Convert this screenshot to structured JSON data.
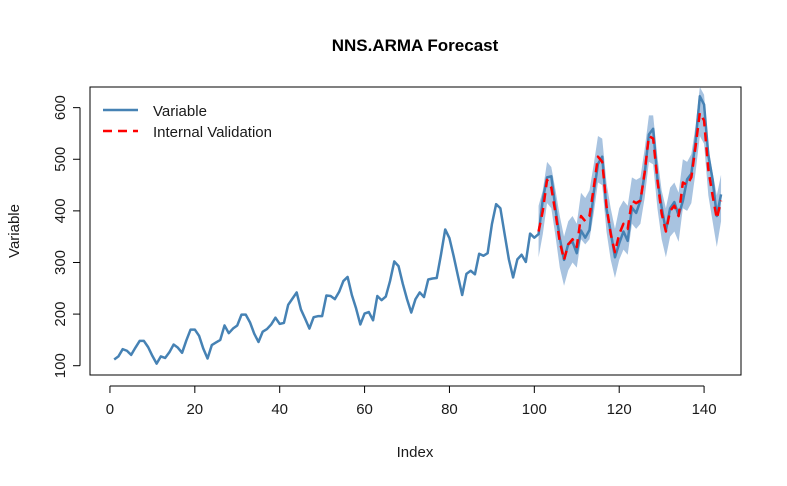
{
  "chart_data": {
    "type": "line",
    "title": "NNS.ARMA Forecast",
    "xlabel": "Index",
    "ylabel": "Variable",
    "xlim": [
      -4.7,
      148.7
    ],
    "ylim": [
      82,
      640
    ],
    "xticks": [
      0,
      20,
      40,
      60,
      80,
      100,
      120,
      140
    ],
    "yticks": [
      100,
      200,
      300,
      400,
      500,
      600
    ],
    "legend": {
      "position": "top-left",
      "entries": [
        "Variable",
        "Internal Validation"
      ]
    },
    "colors": {
      "variable": "#4682B4",
      "validation": "#FF0000",
      "interval": "#A8C3E0",
      "axis": "#000000"
    },
    "series": [
      {
        "name": "Variable",
        "x_start": 1,
        "values": [
          112,
          118,
          132,
          129,
          121,
          135,
          148,
          148,
          136,
          119,
          104,
          118,
          115,
          126,
          141,
          135,
          125,
          149,
          170,
          170,
          158,
          133,
          114,
          140,
          145,
          150,
          178,
          163,
          172,
          178,
          199,
          199,
          184,
          162,
          146,
          166,
          171,
          180,
          193,
          181,
          183,
          218,
          230,
          242,
          209,
          191,
          172,
          194,
          196,
          196,
          236,
          235,
          229,
          243,
          264,
          272,
          237,
          211,
          180,
          201,
          204,
          188,
          235,
          227,
          234,
          264,
          302,
          293,
          259,
          229,
          203,
          229,
          242,
          233,
          267,
          269,
          270,
          315,
          364,
          347,
          312,
          274,
          237,
          278,
          284,
          277,
          317,
          313,
          318,
          374,
          413,
          405,
          355,
          306,
          271,
          306,
          315,
          301,
          356,
          348,
          355,
          422,
          465,
          467,
          404,
          347,
          305,
          336,
          340,
          318,
          362,
          348,
          363,
          435,
          491,
          505,
          404,
          359,
          310,
          337,
          360,
          342,
          406,
          396,
          420,
          472,
          548,
          559,
          463,
          407,
          362,
          405,
          417,
          391,
          419,
          461,
          472,
          535,
          622,
          606,
          508,
          461,
          390,
          432
        ]
      },
      {
        "name": "Internal Validation",
        "x_start": 101,
        "values": [
          360,
          400,
          460,
          445,
          395,
          340,
          305,
          335,
          345,
          330,
          390,
          380,
          390,
          445,
          505,
          495,
          410,
          355,
          320,
          355,
          375,
          365,
          420,
          415,
          420,
          475,
          545,
          540,
          460,
          395,
          360,
          400,
          410,
          390,
          455,
          450,
          465,
          525,
          590,
          575,
          480,
          430,
          385,
          420
        ]
      }
    ],
    "interval_band": {
      "x_start": 101,
      "lower": [
        310,
        355,
        415,
        405,
        350,
        290,
        255,
        285,
        300,
        290,
        345,
        335,
        345,
        395,
        455,
        450,
        360,
        305,
        270,
        305,
        325,
        315,
        375,
        365,
        375,
        425,
        495,
        490,
        405,
        345,
        310,
        350,
        360,
        340,
        405,
        400,
        415,
        475,
        545,
        530,
        430,
        380,
        330,
        380
      ],
      "upper": [
        410,
        440,
        495,
        485,
        440,
        390,
        350,
        380,
        390,
        375,
        435,
        425,
        440,
        490,
        545,
        540,
        455,
        405,
        365,
        405,
        420,
        410,
        465,
        460,
        465,
        520,
        585,
        585,
        505,
        440,
        405,
        445,
        455,
        435,
        500,
        495,
        510,
        565,
        640,
        625,
        525,
        475,
        430,
        470
      ]
    }
  }
}
